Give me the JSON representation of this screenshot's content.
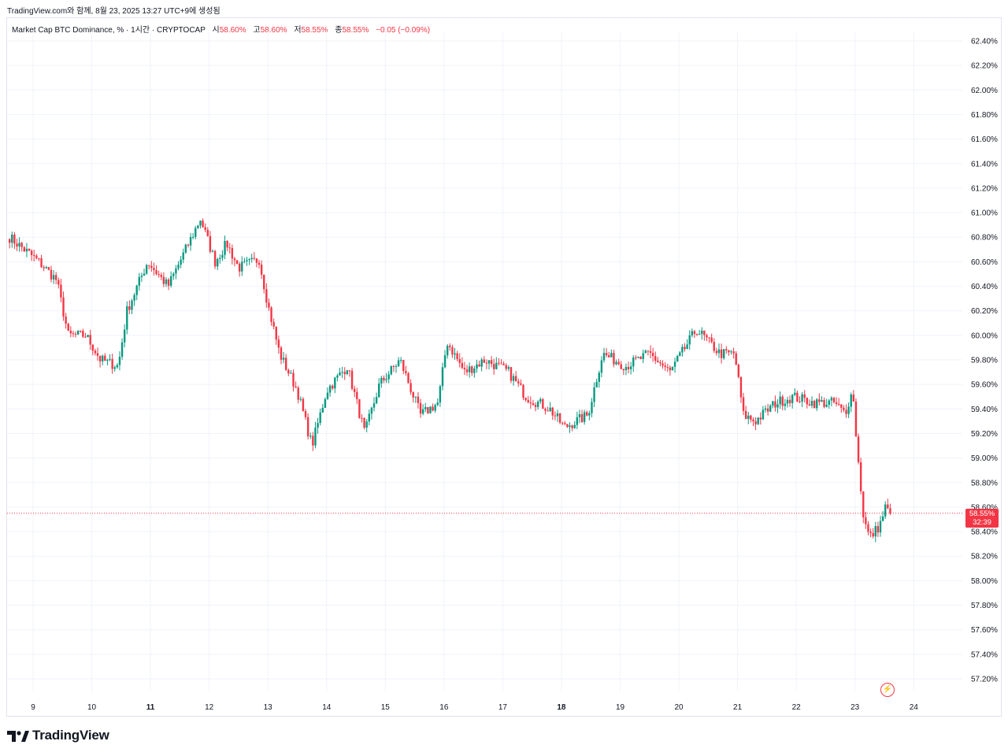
{
  "header": {
    "attribution": "TradingView.com와 함께, 8월 23, 2025 13:27 UTC+9에 생성됨"
  },
  "legend": {
    "symbol": "Market Cap BTC Dominance, %",
    "interval": "1시간",
    "exchange": "CRYPTOCAP",
    "open_label": "시",
    "open": "58.60%",
    "high_label": "고",
    "high": "58.60%",
    "low_label": "저",
    "low": "58.55%",
    "close_label": "종",
    "close": "58.55%",
    "change": "−0.05 (−0.09%)"
  },
  "price_badge": {
    "price": "58.55%",
    "countdown": "32:39"
  },
  "brand": {
    "name": "TradingView"
  },
  "colors": {
    "up": "#089981",
    "down": "#f23645",
    "grid": "#f0f3fa",
    "text": "#131722"
  },
  "icons": {
    "brand": "tradingview-logo-icon",
    "alert": "lightning-bolt-icon"
  },
  "chart_data": {
    "type": "candlestick",
    "timeframe": "1시간",
    "y_axis": {
      "range": [
        57.2,
        62.4
      ],
      "tick_labels": [
        "62.40%",
        "62.20%",
        "62.00%",
        "61.80%",
        "61.60%",
        "61.40%",
        "61.20%",
        "61.00%",
        "60.80%",
        "60.60%",
        "60.40%",
        "60.20%",
        "60.00%",
        "59.80%",
        "59.60%",
        "59.40%",
        "59.20%",
        "59.00%",
        "58.80%",
        "58.60%",
        "58.40%",
        "58.20%",
        "58.00%",
        "57.80%",
        "57.60%",
        "57.40%",
        "57.20%"
      ]
    },
    "x_axis": {
      "tick_labels": [
        "9",
        "10",
        "11",
        "12",
        "13",
        "14",
        "15",
        "16",
        "17",
        "18",
        "19",
        "20",
        "21",
        "22",
        "23",
        "24"
      ],
      "day_range": [
        8.6,
        24.0
      ]
    },
    "last_price": 58.55,
    "grid": true,
    "key_points": [
      {
        "day": 8.6,
        "value": 60.8
      },
      {
        "day": 9.1,
        "value": 60.6
      },
      {
        "day": 9.4,
        "value": 60.45
      },
      {
        "day": 9.6,
        "value": 60.0
      },
      {
        "day": 9.9,
        "value": 60.0
      },
      {
        "day": 10.15,
        "value": 59.8
      },
      {
        "day": 10.45,
        "value": 59.75
      },
      {
        "day": 10.6,
        "value": 60.2
      },
      {
        "day": 10.95,
        "value": 60.6
      },
      {
        "day": 11.3,
        "value": 60.4
      },
      {
        "day": 11.6,
        "value": 60.7
      },
      {
        "day": 11.85,
        "value": 60.95
      },
      {
        "day": 12.1,
        "value": 60.6
      },
      {
        "day": 12.3,
        "value": 60.75
      },
      {
        "day": 12.5,
        "value": 60.55
      },
      {
        "day": 12.85,
        "value": 60.62
      },
      {
        "day": 13.0,
        "value": 60.25
      },
      {
        "day": 13.2,
        "value": 59.85
      },
      {
        "day": 13.5,
        "value": 59.55
      },
      {
        "day": 13.75,
        "value": 59.1
      },
      {
        "day": 14.0,
        "value": 59.55
      },
      {
        "day": 14.35,
        "value": 59.75
      },
      {
        "day": 14.65,
        "value": 59.2
      },
      {
        "day": 14.9,
        "value": 59.6
      },
      {
        "day": 15.25,
        "value": 59.8
      },
      {
        "day": 15.6,
        "value": 59.35
      },
      {
        "day": 15.9,
        "value": 59.45
      },
      {
        "day": 16.05,
        "value": 59.95
      },
      {
        "day": 16.35,
        "value": 59.7
      },
      {
        "day": 16.7,
        "value": 59.8
      },
      {
        "day": 17.1,
        "value": 59.7
      },
      {
        "day": 17.4,
        "value": 59.5
      },
      {
        "day": 17.8,
        "value": 59.4
      },
      {
        "day": 18.05,
        "value": 59.25
      },
      {
        "day": 18.45,
        "value": 59.35
      },
      {
        "day": 18.7,
        "value": 59.85
      },
      {
        "day": 19.1,
        "value": 59.75
      },
      {
        "day": 19.5,
        "value": 59.85
      },
      {
        "day": 19.85,
        "value": 59.7
      },
      {
        "day": 20.3,
        "value": 60.05
      },
      {
        "day": 20.7,
        "value": 59.85
      },
      {
        "day": 20.95,
        "value": 59.85
      },
      {
        "day": 21.1,
        "value": 59.35
      },
      {
        "day": 21.3,
        "value": 59.3
      },
      {
        "day": 21.65,
        "value": 59.45
      },
      {
        "day": 21.95,
        "value": 59.5
      },
      {
        "day": 22.3,
        "value": 59.45
      },
      {
        "day": 22.65,
        "value": 59.45
      },
      {
        "day": 22.85,
        "value": 59.35
      },
      {
        "day": 22.95,
        "value": 59.6
      },
      {
        "day": 23.05,
        "value": 59.0
      },
      {
        "day": 23.15,
        "value": 58.5
      },
      {
        "day": 23.25,
        "value": 58.35
      },
      {
        "day": 23.42,
        "value": 58.45
      },
      {
        "day": 23.52,
        "value": 58.6
      },
      {
        "day": 23.6,
        "value": 58.55
      }
    ]
  }
}
